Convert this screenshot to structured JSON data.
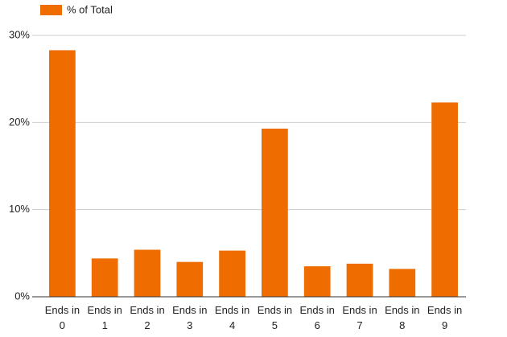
{
  "chart_data": {
    "type": "bar",
    "categories": [
      "Ends in 0",
      "Ends in 1",
      "Ends in 2",
      "Ends in 3",
      "Ends in 4",
      "Ends in 5",
      "Ends in 6",
      "Ends in 7",
      "Ends in 8",
      "Ends in 9"
    ],
    "series": [
      {
        "name": "% of Total",
        "color": "#ef6c00",
        "values": [
          28.3,
          4.4,
          5.4,
          4.0,
          5.3,
          19.3,
          3.5,
          3.8,
          3.2,
          22.3
        ]
      }
    ],
    "ylim": [
      0,
      30
    ],
    "yticks": [
      {
        "value": 0,
        "label": "0%"
      },
      {
        "value": 10,
        "label": "10%"
      },
      {
        "value": 20,
        "label": "20%"
      },
      {
        "value": 30,
        "label": "30%"
      }
    ],
    "grid": true,
    "legend": "top-left"
  }
}
